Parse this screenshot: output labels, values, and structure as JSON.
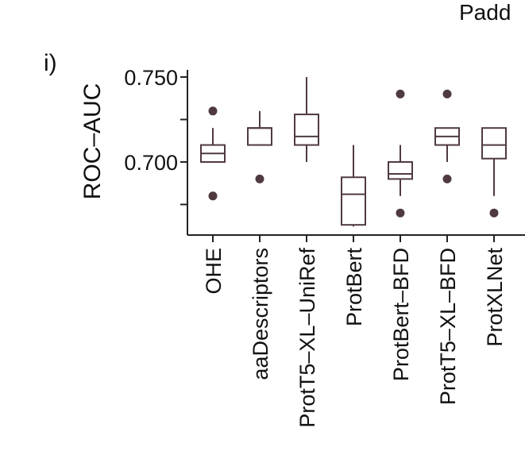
{
  "panel_label": "i)",
  "top_right_text": "Padd",
  "colors": {
    "box": "#4f3a40",
    "axis": "#222222",
    "outlier": "#4f3a40",
    "text": "#111111"
  },
  "chart_data": {
    "type": "box",
    "title": "",
    "xlabel": "",
    "ylabel": "ROC–AUC",
    "ylim": [
      0.662,
      0.754
    ],
    "y_ticks": [
      0.7,
      0.75
    ],
    "y_tick_labels": [
      "0.700",
      "0.750"
    ],
    "y_minor_ticks": [
      0.675,
      0.725
    ],
    "grid": false,
    "categories": [
      "OHE",
      "aaDescriptors",
      "ProtT5–XL–UniRef",
      "ProtBert",
      "ProtBert–BFD",
      "ProtT5–XL–BFD",
      "ProtXLNet"
    ],
    "boxes": [
      {
        "category": "OHE",
        "whisker_low": 0.7,
        "q1": 0.7,
        "median": 0.705,
        "q3": 0.71,
        "whisker_high": 0.72,
        "outliers": [
          0.68,
          0.73
        ]
      },
      {
        "category": "aaDescriptors",
        "whisker_low": 0.71,
        "q1": 0.71,
        "median": 0.72,
        "q3": 0.72,
        "whisker_high": 0.73,
        "outliers": [
          0.69
        ]
      },
      {
        "category": "ProtT5–XL–UniRef",
        "whisker_low": 0.7,
        "q1": 0.71,
        "median": 0.715,
        "q3": 0.728,
        "whisker_high": 0.75,
        "outliers": []
      },
      {
        "category": "ProtBert",
        "whisker_low": 0.662,
        "q1": 0.663,
        "median": 0.681,
        "q3": 0.691,
        "whisker_high": 0.71,
        "outliers": []
      },
      {
        "category": "ProtBert–BFD",
        "whisker_low": 0.68,
        "q1": 0.69,
        "median": 0.693,
        "q3": 0.7,
        "whisker_high": 0.71,
        "outliers": [
          0.67,
          0.74
        ]
      },
      {
        "category": "ProtT5–XL–BFD",
        "whisker_low": 0.7,
        "q1": 0.71,
        "median": 0.715,
        "q3": 0.72,
        "whisker_high": 0.72,
        "outliers": [
          0.69,
          0.74
        ]
      },
      {
        "category": "ProtXLNet",
        "whisker_low": 0.68,
        "q1": 0.702,
        "median": 0.71,
        "q3": 0.72,
        "whisker_high": 0.72,
        "outliers": [
          0.67
        ]
      }
    ]
  }
}
